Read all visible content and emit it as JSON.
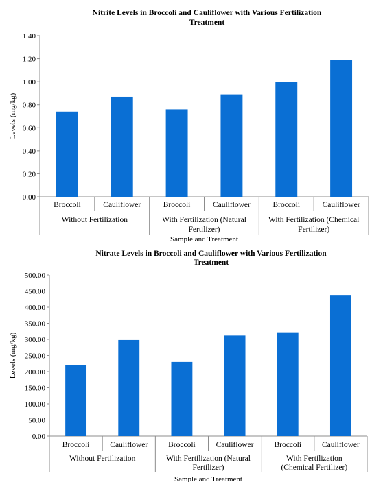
{
  "charts": [
    {
      "title_lines": [
        "Nitrite Levels in Broccoli and Cauliflower with Various Fertilization",
        "Treatment"
      ],
      "ylabel": "Levels (mg/kg)",
      "xlabel": "Sample and Treatment",
      "y_ticks": [
        "0.00",
        "0.20",
        "0.40",
        "0.60",
        "0.80",
        "1.00",
        "1.20",
        "1.40"
      ],
      "categories": [
        "Broccoli",
        "Cauliflower",
        "Broccoli",
        "Cauliflower",
        "Broccoli",
        "Cauliflower"
      ],
      "groups": [
        {
          "lines": [
            "Without Fertilization"
          ]
        },
        {
          "lines": [
            "With Fertilization (Natural",
            "Fertilizer)"
          ]
        },
        {
          "lines": [
            "With Fertilization (Chemical",
            "Fertilizer)"
          ]
        }
      ]
    },
    {
      "title_lines": [
        "Nitrate Levels in Broccoli and Cauliflower with Various Fertilization",
        "Treatment"
      ],
      "ylabel": "Levels (mg/kg)",
      "xlabel": "Sample and Treatment",
      "y_ticks": [
        "0.00",
        "50.00",
        "100.00",
        "150.00",
        "200.00",
        "250.00",
        "300.00",
        "350.00",
        "400.00",
        "450.00",
        "500.00"
      ],
      "categories": [
        "Broccoli",
        "Cauliflower",
        "Broccoli",
        "Cauliflower",
        "Broccoli",
        "Cauliflower"
      ],
      "groups": [
        {
          "lines": [
            "Without Fertilization"
          ]
        },
        {
          "lines": [
            "With Fertilization (Natural",
            "Fertilizer)"
          ]
        },
        {
          "lines": [
            "With Fertilization",
            "(Chemical Fertilizer)"
          ]
        }
      ]
    }
  ],
  "chart_data": [
    {
      "type": "bar",
      "title": "Nitrite Levels in Broccoli and Cauliflower with Various Fertilization Treatment",
      "xlabel": "Sample and Treatment",
      "ylabel": "Levels (mg/kg)",
      "categories": [
        "Broccoli",
        "Cauliflower",
        "Broccoli",
        "Cauliflower",
        "Broccoli",
        "Cauliflower"
      ],
      "category_groups": [
        "Without Fertilization",
        "With Fertilization (Natural Fertilizer)",
        "With Fertilization (Chemical Fertilizer)"
      ],
      "values": [
        0.74,
        0.87,
        0.76,
        0.89,
        1.0,
        1.19
      ],
      "ylim": [
        0,
        1.4
      ],
      "grid": false,
      "bar_color": "#0a6fd4"
    },
    {
      "type": "bar",
      "title": "Nitrate Levels in Broccoli and Cauliflower with Various Fertilization Treatment",
      "xlabel": "Sample and Treatment",
      "ylabel": "Levels (mg/kg)",
      "categories": [
        "Broccoli",
        "Cauliflower",
        "Broccoli",
        "Cauliflower",
        "Broccoli",
        "Cauliflower"
      ],
      "category_groups": [
        "Without Fertilization",
        "With Fertilization (Natural Fertilizer)",
        "With Fertilization (Chemical Fertilizer)"
      ],
      "values": [
        220,
        298,
        230,
        312,
        322,
        438
      ],
      "ylim": [
        0,
        500
      ],
      "grid": false,
      "bar_color": "#0a6fd4"
    }
  ]
}
